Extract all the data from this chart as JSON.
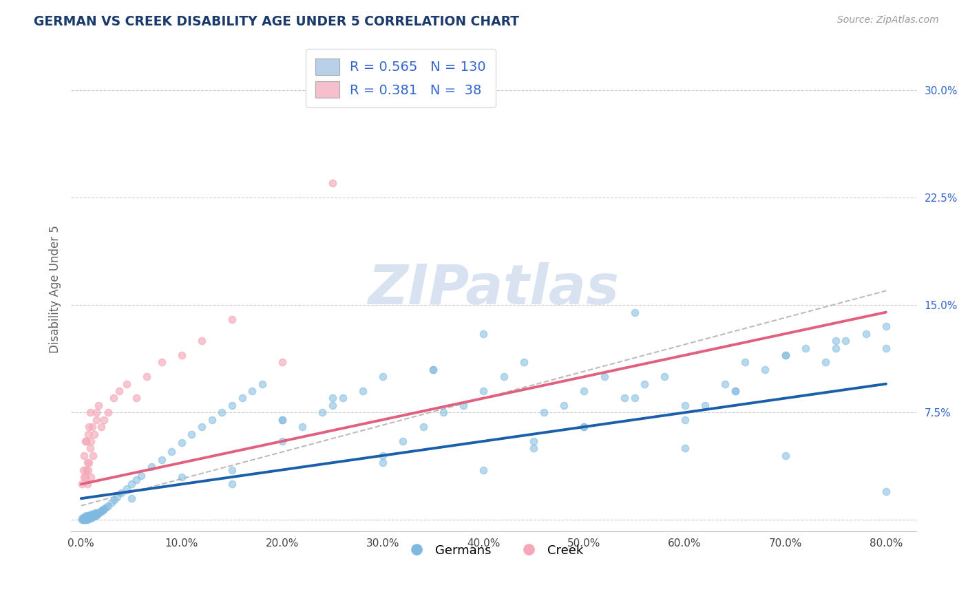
{
  "title": "GERMAN VS CREEK DISABILITY AGE UNDER 5 CORRELATION CHART",
  "source": "Source: ZipAtlas.com",
  "ylabel": "Disability Age Under 5",
  "x_tick_labels": [
    "0.0%",
    "10.0%",
    "20.0%",
    "30.0%",
    "40.0%",
    "50.0%",
    "60.0%",
    "70.0%",
    "80.0%"
  ],
  "x_ticks": [
    0.0,
    10.0,
    20.0,
    30.0,
    40.0,
    50.0,
    60.0,
    70.0,
    80.0
  ],
  "y_tick_labels": [
    "",
    "7.5%",
    "15.0%",
    "22.5%",
    "30.0%"
  ],
  "y_ticks": [
    0.0,
    7.5,
    15.0,
    22.5,
    30.0
  ],
  "xlim": [
    -1.0,
    83
  ],
  "ylim": [
    -0.8,
    33
  ],
  "blue_scatter_color": "#7fb9e0",
  "pink_scatter_color": "#f4a8b8",
  "blue_line_color": "#1a5fa8",
  "pink_line_color": "#e0607e",
  "dashed_line_color": "#b0b0b0",
  "grid_color": "#cccccc",
  "title_color": "#1a3a6b",
  "ylabel_color": "#666666",
  "yticklabel_color": "#3366cc",
  "legend_R1": "0.565",
  "legend_N1": "130",
  "legend_R2": "0.381",
  "legend_N2": "38",
  "legend_label1": "Germans",
  "legend_label2": "Creek",
  "legend_blue_fill": "#b8d0e8",
  "legend_pink_fill": "#f5c0cc",
  "watermark_text": "ZIPatlas",
  "watermark_color": "#d5dff0",
  "german_x": [
    0.1,
    0.1,
    0.2,
    0.2,
    0.3,
    0.3,
    0.3,
    0.4,
    0.4,
    0.4,
    0.5,
    0.5,
    0.5,
    0.5,
    0.6,
    0.6,
    0.6,
    0.7,
    0.7,
    0.7,
    0.8,
    0.8,
    0.8,
    0.9,
    0.9,
    1.0,
    1.0,
    1.0,
    1.0,
    1.1,
    1.1,
    1.2,
    1.2,
    1.3,
    1.3,
    1.4,
    1.4,
    1.5,
    1.5,
    1.6,
    1.7,
    1.8,
    1.9,
    2.0,
    2.1,
    2.2,
    2.3,
    2.5,
    2.7,
    3.0,
    3.3,
    3.6,
    4.0,
    4.5,
    5.0,
    5.5,
    6.0,
    7.0,
    8.0,
    9.0,
    10.0,
    11.0,
    12.0,
    13.0,
    14.0,
    15.0,
    16.0,
    17.0,
    18.0,
    20.0,
    22.0,
    24.0,
    26.0,
    28.0,
    30.0,
    32.0,
    34.0,
    36.0,
    38.0,
    40.0,
    42.0,
    44.0,
    46.0,
    48.0,
    50.0,
    52.0,
    54.0,
    56.0,
    58.0,
    60.0,
    62.0,
    64.0,
    66.0,
    68.0,
    70.0,
    72.0,
    74.0,
    76.0,
    78.0,
    80.0,
    25.0,
    35.0,
    45.0,
    55.0,
    65.0,
    75.0,
    30.0,
    50.0,
    70.0,
    20.0,
    40.0,
    60.0,
    80.0,
    15.0,
    45.0,
    65.0,
    55.0,
    35.0,
    75.0,
    25.0,
    5.0,
    10.0,
    20.0,
    30.0,
    40.0,
    50.0,
    60.0,
    70.0,
    80.0,
    15.0
  ],
  "german_y": [
    0.0,
    0.1,
    0.0,
    0.1,
    0.0,
    0.1,
    0.2,
    0.0,
    0.1,
    0.2,
    0.0,
    0.1,
    0.2,
    0.3,
    0.0,
    0.1,
    0.2,
    0.1,
    0.2,
    0.3,
    0.1,
    0.2,
    0.3,
    0.2,
    0.3,
    0.1,
    0.2,
    0.3,
    0.4,
    0.2,
    0.3,
    0.2,
    0.4,
    0.3,
    0.4,
    0.3,
    0.5,
    0.3,
    0.5,
    0.4,
    0.5,
    0.5,
    0.6,
    0.6,
    0.7,
    0.7,
    0.8,
    0.9,
    1.0,
    1.2,
    1.4,
    1.6,
    1.9,
    2.2,
    2.5,
    2.8,
    3.1,
    3.7,
    4.2,
    4.8,
    5.4,
    6.0,
    6.5,
    7.0,
    7.5,
    8.0,
    8.5,
    9.0,
    9.5,
    5.5,
    6.5,
    7.5,
    8.5,
    9.0,
    4.5,
    5.5,
    6.5,
    7.5,
    8.0,
    9.0,
    10.0,
    11.0,
    7.5,
    8.0,
    9.0,
    10.0,
    8.5,
    9.5,
    10.0,
    7.0,
    8.0,
    9.5,
    11.0,
    10.5,
    11.5,
    12.0,
    11.0,
    12.5,
    13.0,
    12.0,
    8.0,
    10.5,
    5.5,
    8.5,
    9.0,
    12.5,
    10.0,
    6.5,
    11.5,
    7.0,
    13.0,
    8.0,
    13.5,
    3.5,
    5.0,
    9.0,
    14.5,
    10.5,
    12.0,
    8.5,
    1.5,
    3.0,
    7.0,
    4.0,
    3.5,
    6.5,
    5.0,
    4.5,
    2.0,
    2.5
  ],
  "creek_x": [
    0.1,
    0.2,
    0.3,
    0.3,
    0.4,
    0.5,
    0.5,
    0.6,
    0.6,
    0.7,
    0.7,
    0.8,
    0.9,
    0.9,
    1.0,
    1.0,
    1.1,
    1.2,
    1.3,
    1.5,
    1.7,
    2.0,
    2.3,
    2.7,
    3.2,
    3.8,
    4.5,
    5.5,
    6.5,
    8.0,
    10.0,
    12.0,
    15.0,
    20.0,
    25.0,
    0.4,
    0.8,
    1.5
  ],
  "creek_y": [
    2.5,
    3.5,
    3.0,
    4.5,
    3.0,
    3.5,
    5.5,
    2.5,
    4.0,
    3.5,
    6.0,
    4.0,
    5.0,
    7.5,
    3.0,
    5.5,
    6.5,
    4.5,
    6.0,
    7.0,
    8.0,
    6.5,
    7.0,
    7.5,
    8.5,
    9.0,
    9.5,
    8.5,
    10.0,
    11.0,
    11.5,
    12.5,
    14.0,
    11.0,
    23.5,
    5.5,
    6.5,
    7.5
  ],
  "blue_line_x": [
    0.0,
    80.0
  ],
  "blue_line_y": [
    1.5,
    9.5
  ],
  "pink_line_x": [
    0.0,
    80.0
  ],
  "pink_line_y": [
    2.5,
    14.5
  ],
  "dashed_line_x": [
    0.0,
    80.0
  ],
  "dashed_line_y": [
    1.0,
    16.0
  ]
}
